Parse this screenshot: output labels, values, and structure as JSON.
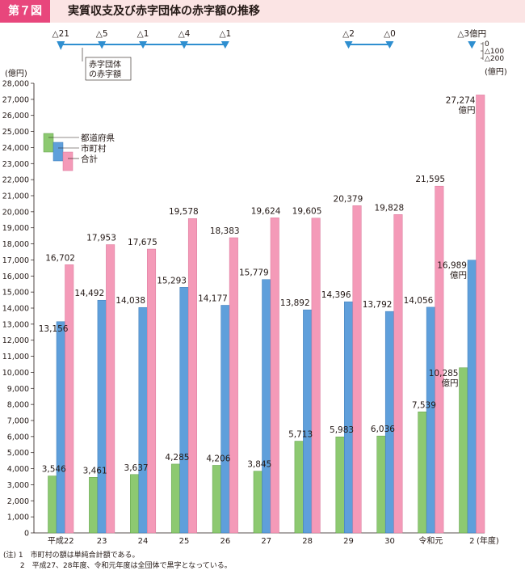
{
  "header": {
    "figure_label": "第７図",
    "title": "実質収支及び赤字団体の赤字額の推移"
  },
  "colors": {
    "prefecture": "#8dc971",
    "municipality": "#5f9fdb",
    "total": "#f49ab8",
    "deficit_line": "#2f8fd0",
    "accent": "#e8467c"
  },
  "chart_data": {
    "type": "bar",
    "title": "実質収支及び赤字団体の赤字額の推移",
    "ylabel": "(億円)",
    "xunit": "(年度)",
    "ylim": [
      0,
      28000
    ],
    "ytick_step": 1000,
    "y_ticks": [
      "0",
      "1,000",
      "2,000",
      "3,000",
      "4,000",
      "5,000",
      "6,000",
      "7,000",
      "8,000",
      "9,000",
      "10,000",
      "11,000",
      "12,000",
      "13,000",
      "14,000",
      "15,000",
      "16,000",
      "17,000",
      "18,000",
      "19,000",
      "20,000",
      "21,000",
      "22,000",
      "23,000",
      "24,000",
      "25,000",
      "26,000",
      "27,000",
      "28,000"
    ],
    "categories": [
      "平成22",
      "23",
      "24",
      "25",
      "26",
      "27",
      "28",
      "29",
      "30",
      "令和元",
      "2"
    ],
    "series": [
      {
        "name": "都道府県",
        "key": "prefecture",
        "values": [
          3546,
          3461,
          3637,
          4285,
          4206,
          3845,
          5713,
          5983,
          6036,
          7539,
          10285
        ],
        "labels": [
          "3,546",
          "3,461",
          "3,637",
          "4,285",
          "4,206",
          "3,845",
          "5,713",
          "5,983",
          "6,036",
          "7,539",
          "10,285\n億円"
        ]
      },
      {
        "name": "市町村",
        "key": "municipality",
        "values": [
          13156,
          14492,
          14038,
          15293,
          14177,
          15779,
          13892,
          14396,
          13792,
          14056,
          16989
        ],
        "labels": [
          "13,156",
          "14,492",
          "14,038",
          "15,293",
          "14,177",
          "15,779",
          "13,892",
          "14,396",
          "13,792",
          "14,056",
          "16,989\n億円"
        ]
      },
      {
        "name": "合計",
        "key": "total",
        "values": [
          16702,
          17953,
          17675,
          19578,
          18383,
          19624,
          19605,
          20379,
          19828,
          21595,
          27274
        ],
        "labels": [
          "16,702",
          "17,953",
          "17,675",
          "19,578",
          "18,383",
          "19,624",
          "19,605",
          "20,379",
          "19,828",
          "21,595",
          "27,274\n億円"
        ]
      }
    ],
    "deficit": {
      "legend_label": "赤字団体\nの赤字額",
      "unit": "(億円)",
      "scale_ticks": [
        "0",
        "△100",
        "△200"
      ],
      "scale_values": [
        0,
        -100,
        -200
      ],
      "points": [
        {
          "category_index": 0,
          "value": -21,
          "label": "△21"
        },
        {
          "category_index": 1,
          "value": -5,
          "label": "△5"
        },
        {
          "category_index": 2,
          "value": -1,
          "label": "△1"
        },
        {
          "category_index": 3,
          "value": -4,
          "label": "△4"
        },
        {
          "category_index": 4,
          "value": -1,
          "label": "△1"
        },
        {
          "category_index": 7,
          "value": -2,
          "label": "△2"
        },
        {
          "category_index": 8,
          "value": 0,
          "label": "△0"
        },
        {
          "category_index": 10,
          "value": -3,
          "label": "△3億円"
        }
      ],
      "segments": [
        [
          0,
          4
        ],
        [
          7,
          8
        ]
      ]
    }
  },
  "notes": [
    "(注) 1　市町村の額は単純合計額である。",
    "　　 2　平成27、28年度、令和元年度は全団体で黒字となっている。"
  ]
}
